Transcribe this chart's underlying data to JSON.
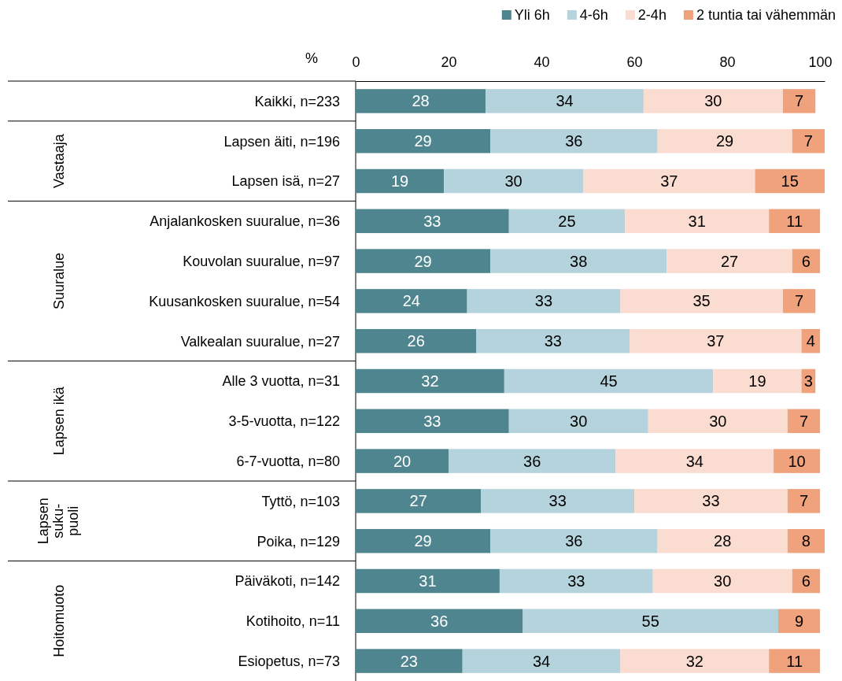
{
  "chart_data": {
    "type": "bar",
    "orientation": "horizontal",
    "stacked": true,
    "data_labels": true,
    "legend": "top right",
    "grid": false,
    "xlabel": "%",
    "xlim": [
      0,
      101
    ],
    "xticks": [
      0,
      20,
      40,
      60,
      80,
      100
    ],
    "categories": [
      "Kaikki, n=233",
      "Lapsen äiti, n=196",
      "Lapsen isä, n=27",
      "Anjalankosken suuralue, n=36",
      "Kouvolan suuralue, n=97",
      "Kuusankosken suuralue, n=54",
      "Valkealan suuralue, n=27",
      "Alle 3 vuotta, n=31",
      "3-5-vuotta, n=122",
      "6-7-vuotta, n=80",
      "Tyttö, n=103",
      "Poika, n=129",
      "Päiväkoti, n=142",
      "Kotihoito, n=11",
      "Esiopetus, n=73"
    ],
    "series": [
      {
        "name": "Yli 6h",
        "color": "#4e858e",
        "values": [
          28,
          29,
          19,
          33,
          29,
          24,
          26,
          32,
          33,
          20,
          27,
          29,
          31,
          36,
          23
        ]
      },
      {
        "name": "4-6h",
        "color": "#b5d3dc",
        "values": [
          34,
          36,
          30,
          25,
          38,
          33,
          33,
          45,
          30,
          36,
          33,
          36,
          33,
          55,
          34
        ]
      },
      {
        "name": "2-4h",
        "color": "#fbdcd0",
        "values": [
          30,
          29,
          37,
          31,
          27,
          35,
          37,
          19,
          30,
          34,
          33,
          28,
          30,
          null,
          32
        ]
      },
      {
        "name": "2 tuntia tai vähemmän",
        "color": "#f0a27c",
        "values": [
          7,
          7,
          15,
          11,
          6,
          7,
          4,
          3,
          7,
          10,
          7,
          8,
          6,
          9,
          11
        ]
      }
    ],
    "annotations": [
      "Vastaaja",
      "Suuralue",
      "Lapsen ikä",
      "Lapsen suku-puoli",
      "Hoitomuoto"
    ]
  }
}
